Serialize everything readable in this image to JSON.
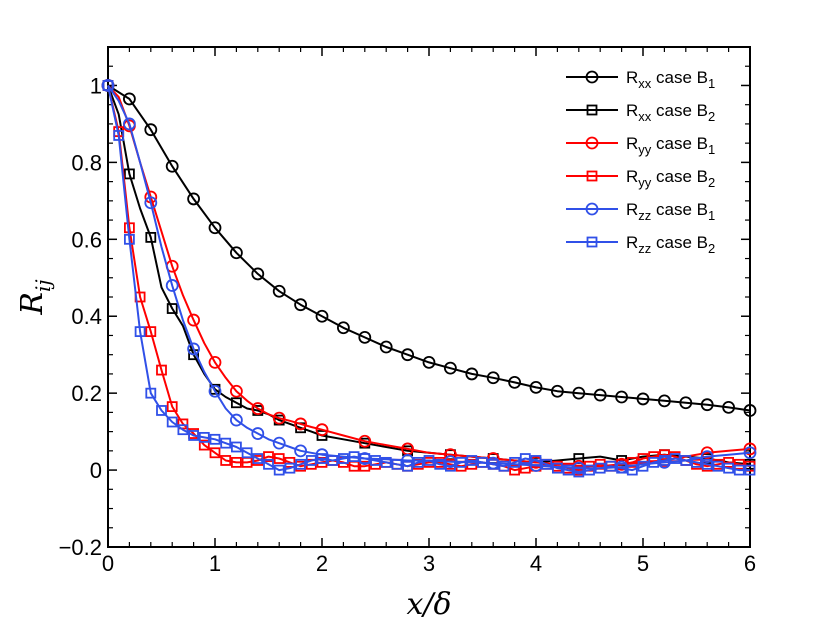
{
  "chart_data": {
    "type": "line",
    "title": "",
    "xlabel": "x/δ",
    "ylabel": "Rij",
    "xlim": [
      0,
      6
    ],
    "ylim": [
      -0.2,
      1.1
    ],
    "xticks": [
      0,
      1,
      2,
      3,
      4,
      5,
      6
    ],
    "yticks": [
      -0.2,
      0,
      0.2,
      0.4,
      0.6,
      0.8,
      1
    ],
    "xtick_labels": [
      "0",
      "1",
      "2",
      "3",
      "4",
      "5",
      "6"
    ],
    "ytick_labels": [
      "−0.2",
      "0",
      "0.2",
      "0.4",
      "0.6",
      "0.8",
      "1"
    ],
    "legend_position": "top-right",
    "series": [
      {
        "name": "Rxx case B1",
        "sub1": "xx",
        "mid": " case B",
        "sub2": "1",
        "color": "#000000",
        "marker": "circle",
        "markevery": 1,
        "x": [
          0,
          0.2,
          0.4,
          0.6,
          0.8,
          1.0,
          1.2,
          1.4,
          1.6,
          1.8,
          2.0,
          2.2,
          2.4,
          2.6,
          2.8,
          3.0,
          3.2,
          3.4,
          3.6,
          3.8,
          4.0,
          4.2,
          4.4,
          4.6,
          4.8,
          5.0,
          5.2,
          5.4,
          5.6,
          5.8,
          6.0
        ],
        "values": [
          1.0,
          0.965,
          0.885,
          0.79,
          0.705,
          0.63,
          0.565,
          0.51,
          0.465,
          0.43,
          0.4,
          0.37,
          0.345,
          0.32,
          0.3,
          0.28,
          0.265,
          0.25,
          0.24,
          0.228,
          0.215,
          0.205,
          0.2,
          0.195,
          0.19,
          0.185,
          0.18,
          0.175,
          0.17,
          0.163,
          0.155
        ]
      },
      {
        "name": "Rxx case B2",
        "sub1": "xx",
        "mid": " case B",
        "sub2": "2",
        "color": "#000000",
        "marker": "square",
        "markevery": 2,
        "x": [
          0,
          0.1,
          0.2,
          0.3,
          0.4,
          0.5,
          0.6,
          0.7,
          0.8,
          0.9,
          1.0,
          1.1,
          1.2,
          1.3,
          1.4,
          1.5,
          1.6,
          1.7,
          1.8,
          1.9,
          2.0,
          2.2,
          2.4,
          2.6,
          2.8,
          3.0,
          3.2,
          3.4,
          3.6,
          3.8,
          4.0,
          4.2,
          4.4,
          4.6,
          4.8,
          5.0,
          5.2,
          5.4,
          5.6,
          5.8,
          6.0
        ],
        "values": [
          1.0,
          0.925,
          0.77,
          0.68,
          0.605,
          0.475,
          0.42,
          0.375,
          0.3,
          0.25,
          0.21,
          0.19,
          0.175,
          0.16,
          0.155,
          0.145,
          0.13,
          0.12,
          0.11,
          0.1,
          0.09,
          0.08,
          0.07,
          0.06,
          0.05,
          0.045,
          0.04,
          0.035,
          0.03,
          0.025,
          0.02,
          0.025,
          0.03,
          0.035,
          0.025,
          0.035,
          0.04,
          0.035,
          0.03,
          0.02,
          0.015
        ]
      },
      {
        "name": "Ryy case B1",
        "sub1": "yy",
        "mid": " case B",
        "sub2": "1",
        "color": "#ff0000",
        "marker": "circle",
        "markevery": 2,
        "x": [
          0,
          0.1,
          0.2,
          0.3,
          0.4,
          0.5,
          0.6,
          0.7,
          0.8,
          0.9,
          1.0,
          1.1,
          1.2,
          1.3,
          1.4,
          1.5,
          1.6,
          1.7,
          1.8,
          1.9,
          2.0,
          2.2,
          2.4,
          2.6,
          2.8,
          3.0,
          3.2,
          3.4,
          3.6,
          3.8,
          4.0,
          4.2,
          4.4,
          4.6,
          4.8,
          5.0,
          5.2,
          5.4,
          5.6,
          5.8,
          6.0
        ],
        "values": [
          1.0,
          0.97,
          0.895,
          0.8,
          0.71,
          0.62,
          0.53,
          0.455,
          0.39,
          0.33,
          0.28,
          0.24,
          0.205,
          0.18,
          0.16,
          0.145,
          0.135,
          0.128,
          0.12,
          0.112,
          0.105,
          0.09,
          0.075,
          0.065,
          0.055,
          0.045,
          0.04,
          0.035,
          0.03,
          0.025,
          0.02,
          0.015,
          0.01,
          0.01,
          0.015,
          0.02,
          0.025,
          0.035,
          0.045,
          0.05,
          0.055
        ]
      },
      {
        "name": "Ryy case B2",
        "sub1": "yy",
        "mid": " case B",
        "sub2": "2",
        "color": "#ff0000",
        "marker": "square",
        "markevery": 1,
        "x": [
          0,
          0.1,
          0.2,
          0.3,
          0.4,
          0.5,
          0.6,
          0.7,
          0.8,
          0.9,
          1.0,
          1.1,
          1.2,
          1.3,
          1.4,
          1.5,
          1.6,
          1.7,
          1.8,
          1.9,
          2.0,
          2.1,
          2.2,
          2.3,
          2.4,
          2.5,
          2.6,
          2.7,
          2.8,
          2.9,
          3.0,
          3.1,
          3.2,
          3.3,
          3.4,
          3.5,
          3.6,
          3.7,
          3.8,
          3.9,
          4.0,
          4.1,
          4.2,
          4.3,
          4.4,
          4.5,
          4.6,
          4.7,
          4.8,
          4.9,
          5.0,
          5.1,
          5.2,
          5.3,
          5.4,
          5.5,
          5.6,
          5.7,
          5.8,
          5.9,
          6.0
        ],
        "values": [
          1.0,
          0.88,
          0.63,
          0.45,
          0.36,
          0.26,
          0.165,
          0.12,
          0.095,
          0.065,
          0.045,
          0.025,
          0.02,
          0.02,
          0.025,
          0.035,
          0.03,
          0.02,
          0.01,
          0.015,
          0.02,
          0.025,
          0.02,
          0.01,
          0.01,
          0.015,
          0.02,
          0.015,
          0.01,
          0.015,
          0.02,
          0.02,
          0.015,
          0.01,
          0.015,
          0.02,
          0.015,
          0.01,
          0.0,
          0.005,
          0.01,
          0.015,
          0.01,
          0.005,
          0.0,
          0.01,
          0.015,
          0.01,
          0.015,
          0.02,
          0.03,
          0.035,
          0.04,
          0.035,
          0.025,
          0.015,
          0.01,
          0.015,
          0.02,
          0.015,
          0.01
        ]
      },
      {
        "name": "Rzz case B1",
        "sub1": "zz",
        "mid": " case B",
        "sub2": "1",
        "color": "#3050e8",
        "marker": "circle",
        "markevery": 2,
        "x": [
          0,
          0.1,
          0.2,
          0.3,
          0.4,
          0.5,
          0.6,
          0.7,
          0.8,
          0.9,
          1.0,
          1.1,
          1.2,
          1.3,
          1.4,
          1.5,
          1.6,
          1.7,
          1.8,
          1.9,
          2.0,
          2.2,
          2.4,
          2.6,
          2.8,
          3.0,
          3.2,
          3.4,
          3.6,
          3.8,
          4.0,
          4.2,
          4.4,
          4.6,
          4.8,
          5.0,
          5.2,
          5.4,
          5.6,
          5.8,
          6.0
        ],
        "values": [
          1.0,
          0.96,
          0.9,
          0.8,
          0.695,
          0.58,
          0.48,
          0.39,
          0.315,
          0.255,
          0.205,
          0.16,
          0.13,
          0.11,
          0.095,
          0.08,
          0.07,
          0.06,
          0.05,
          0.045,
          0.04,
          0.035,
          0.03,
          0.028,
          0.025,
          0.025,
          0.022,
          0.02,
          0.018,
          0.015,
          0.012,
          0.008,
          0.005,
          0.005,
          0.008,
          0.015,
          0.02,
          0.025,
          0.035,
          0.04,
          0.045
        ]
      },
      {
        "name": "Rzz case B2",
        "sub1": "zz",
        "mid": " case B",
        "sub2": "2",
        "color": "#3050e8",
        "marker": "square",
        "markevery": 1,
        "x": [
          0,
          0.1,
          0.2,
          0.3,
          0.4,
          0.5,
          0.6,
          0.7,
          0.8,
          0.9,
          1.0,
          1.1,
          1.2,
          1.3,
          1.4,
          1.5,
          1.6,
          1.7,
          1.8,
          1.9,
          2.0,
          2.1,
          2.2,
          2.3,
          2.4,
          2.5,
          2.6,
          2.7,
          2.8,
          2.9,
          3.0,
          3.1,
          3.2,
          3.3,
          3.4,
          3.5,
          3.6,
          3.7,
          3.8,
          3.9,
          4.0,
          4.1,
          4.2,
          4.3,
          4.4,
          4.5,
          4.6,
          4.7,
          4.8,
          4.9,
          5.0,
          5.1,
          5.2,
          5.3,
          5.4,
          5.5,
          5.6,
          5.7,
          5.8,
          5.9,
          6.0
        ],
        "values": [
          1.0,
          0.87,
          0.6,
          0.36,
          0.2,
          0.155,
          0.125,
          0.105,
          0.09,
          0.085,
          0.08,
          0.07,
          0.06,
          0.045,
          0.03,
          0.015,
          0.0,
          0.005,
          0.015,
          0.025,
          0.03,
          0.025,
          0.03,
          0.035,
          0.03,
          0.025,
          0.02,
          0.015,
          0.01,
          0.02,
          0.025,
          0.015,
          0.01,
          0.02,
          0.025,
          0.02,
          0.015,
          0.01,
          0.02,
          0.03,
          0.025,
          0.015,
          0.005,
          0.0,
          -0.005,
          0.0,
          0.005,
          0.01,
          0.005,
          0.0,
          0.01,
          0.02,
          0.025,
          0.03,
          0.025,
          0.02,
          0.015,
          0.01,
          0.005,
          0.0,
          0.0
        ]
      }
    ]
  }
}
